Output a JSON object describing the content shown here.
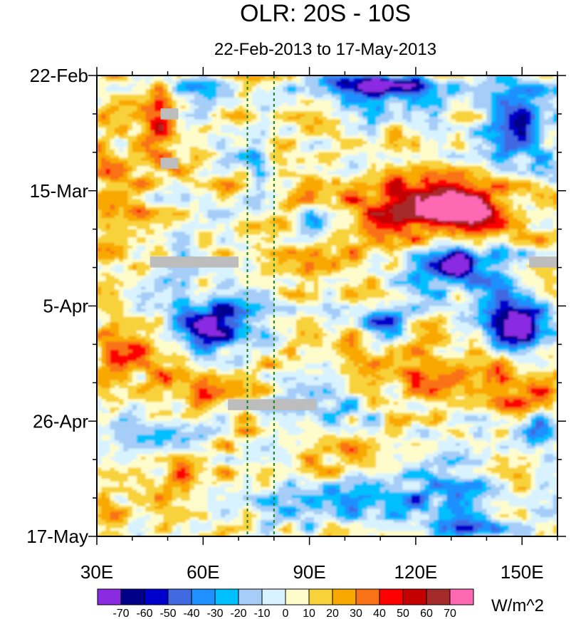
{
  "chart_data": {
    "type": "heatmap",
    "title": "OLR: 20S - 10S",
    "subtitle": "22-Feb-2013 to 17-May-2013",
    "variable_units": "W/m^2",
    "x_axis": {
      "ticks": [
        "30E",
        "60E",
        "90E",
        "120E",
        "150E"
      ],
      "tick_values": [
        30,
        60,
        90,
        120,
        150
      ],
      "range": [
        30,
        160
      ]
    },
    "y_axis": {
      "ticks": [
        "22-Feb",
        "15-Mar",
        "5-Apr",
        "26-Apr",
        "17-May"
      ],
      "tick_days": [
        0,
        21,
        42,
        63,
        84
      ],
      "range_days": [
        0,
        84
      ],
      "direction": "time increases downward"
    },
    "colorbar": {
      "labels": [
        "-70",
        "-60",
        "-50",
        "-40",
        "-30",
        "-20",
        "-10",
        "0",
        "10",
        "20",
        "30",
        "40",
        "50",
        "60",
        "70"
      ],
      "colors": [
        "#8a2be2",
        "#00008b",
        "#0000cd",
        "#4169e1",
        "#1e90ff",
        "#00bfff",
        "#a6cdf7",
        "#d8f3ff",
        "#fffccc",
        "#f8d23a",
        "#f9a800",
        "#f97316",
        "#ff0000",
        "#c40000",
        "#a52a2a",
        "#ff69b4"
      ]
    },
    "reference_lines_lon": [
      72.5,
      80
    ],
    "missing_data_lon_day": [
      {
        "lon": [
          48,
          53
        ],
        "day": [
          6,
          8
        ]
      },
      {
        "lon": [
          48,
          53
        ],
        "day": [
          15,
          17
        ]
      },
      {
        "lon": [
          45,
          70
        ],
        "day": [
          33,
          35
        ]
      },
      {
        "lon": [
          67,
          92
        ],
        "day": [
          59,
          61
        ]
      },
      {
        "lon": [
          152,
          160
        ],
        "day": [
          33,
          35
        ]
      }
    ],
    "features": [
      {
        "lon": [
          123,
          140
        ],
        "day": [
          22,
          27
        ],
        "olr": 60
      },
      {
        "lon": [
          112,
          148
        ],
        "day": [
          18,
          31
        ],
        "olr": 40
      },
      {
        "lon": [
          95,
          140
        ],
        "day": [
          15,
          35
        ],
        "olr": 25
      },
      {
        "lon": [
          40,
          55
        ],
        "day": [
          3,
          16
        ],
        "olr": 35
      },
      {
        "lon": [
          100,
          160
        ],
        "day": [
          46,
          60
        ],
        "olr": 25
      },
      {
        "lon": [
          78,
          118
        ],
        "day": [
          66,
          74
        ],
        "olr": 25
      },
      {
        "lon": [
          30,
          70
        ],
        "day": [
          44,
          56
        ],
        "olr": 25
      },
      {
        "lon": [
          44,
          64
        ],
        "day": [
          70,
          78
        ],
        "olr": 25
      },
      {
        "lon": [
          138,
          160
        ],
        "day": [
          52,
          63
        ],
        "olr": 25
      },
      {
        "lon": [
          30,
          44
        ],
        "day": [
          18,
          30
        ],
        "olr": 25
      },
      {
        "lon": [
          70,
          95
        ],
        "day": [
          20,
          33
        ],
        "olr": 20
      },
      {
        "lon": [
          95,
          125
        ],
        "day": [
          0,
          3
        ],
        "olr": -60
      },
      {
        "lon": [
          90,
          128
        ],
        "day": [
          0,
          8
        ],
        "olr": -40
      },
      {
        "lon": [
          140,
          160
        ],
        "day": [
          1,
          18
        ],
        "olr": -50
      },
      {
        "lon": [
          118,
          140
        ],
        "day": [
          32,
          37
        ],
        "olr": -60
      },
      {
        "lon": [
          112,
          148
        ],
        "day": [
          28,
          40
        ],
        "olr": -40
      },
      {
        "lon": [
          52,
          72
        ],
        "day": [
          42,
          51
        ],
        "olr": -60
      },
      {
        "lon": [
          48,
          82
        ],
        "day": [
          38,
          52
        ],
        "olr": -35
      },
      {
        "lon": [
          72,
          80
        ],
        "day": [
          8,
          25
        ],
        "olr": -45
      },
      {
        "lon": [
          84,
          100
        ],
        "day": [
          24,
          30
        ],
        "olr": -45
      },
      {
        "lon": [
          140,
          160
        ],
        "day": [
          41,
          51
        ],
        "olr": -50
      },
      {
        "lon": [
          130,
          160
        ],
        "day": [
          37,
          53
        ],
        "olr": -35
      },
      {
        "lon": [
          52,
          66
        ],
        "day": [
          0,
          4
        ],
        "olr": -35
      },
      {
        "lon": [
          104,
          120
        ],
        "day": [
          41,
          48
        ],
        "olr": -45
      },
      {
        "lon": [
          125,
          145
        ],
        "day": [
          81,
          84
        ],
        "olr": -60
      },
      {
        "lon": [
          80,
          150
        ],
        "day": [
          72,
          84
        ],
        "olr": -40
      },
      {
        "lon": [
          150,
          160
        ],
        "day": [
          61,
          68
        ],
        "olr": -50
      },
      {
        "lon": [
          86,
          112
        ],
        "day": [
          56,
          66
        ],
        "olr": -25
      },
      {
        "lon": [
          33,
          62
        ],
        "day": [
          61,
          68
        ],
        "olr": -25
      },
      {
        "lon": [
          40,
          70
        ],
        "day": [
          53,
          62
        ],
        "olr": 20
      },
      {
        "lon": [
          30,
          45
        ],
        "day": [
          66,
          84
        ],
        "olr": 8
      },
      {
        "lon": [
          30,
          37
        ],
        "day": [
          0,
          84
        ],
        "olr": 12
      }
    ]
  }
}
